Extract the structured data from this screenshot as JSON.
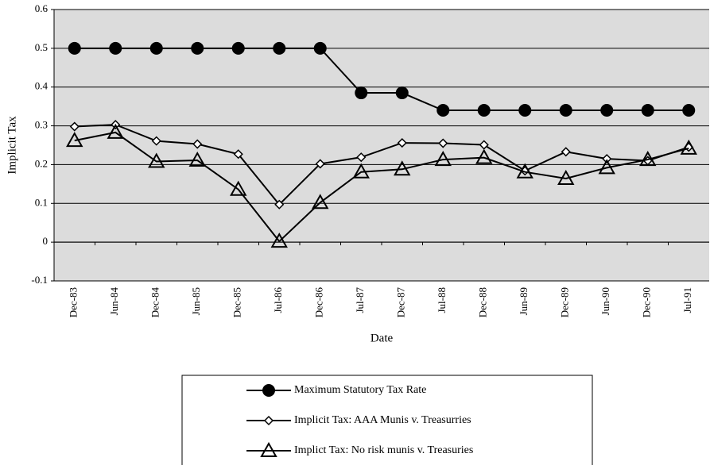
{
  "chart_data": {
    "type": "line",
    "x_label": "Date",
    "y_label": "Implicit Tax",
    "categories": [
      "Dec-83",
      "Jun-84",
      "Dec-84",
      "Jun-85",
      "Dec-85",
      "Jul-86",
      "Dec-86",
      "Jul-87",
      "Dec-87",
      "Jul-88",
      "Dec-88",
      "Jun-89",
      "Dec-89",
      "Jun-90",
      "Dec-90",
      "Jul-91"
    ],
    "series": [
      {
        "name": "Maximum Statutory Tax Rate",
        "color": "#000000",
        "marker": "circle",
        "values": [
          0.5,
          0.5,
          0.5,
          0.5,
          0.5,
          0.5,
          0.5,
          0.385,
          0.385,
          0.34,
          0.34,
          0.34,
          0.34,
          0.34,
          0.34,
          0.34
        ]
      },
      {
        "name": "Implicit Tax: AAA Munis v. Treasurries",
        "color": "#000000",
        "marker": "diamond",
        "values": [
          0.298,
          0.303,
          0.261,
          0.253,
          0.227,
          0.097,
          0.202,
          0.219,
          0.256,
          0.255,
          0.251,
          0.184,
          0.233,
          0.215,
          0.21,
          0.245
        ]
      },
      {
        "name": "Implict Tax: No risk munis v. Treasuries",
        "color": "#000000",
        "marker": "triangle",
        "values": [
          0.262,
          0.283,
          0.208,
          0.211,
          0.136,
          0.002,
          0.102,
          0.181,
          0.188,
          0.213,
          0.218,
          0.181,
          0.164,
          0.192,
          0.213,
          0.242
        ]
      }
    ],
    "ylim": [
      -0.1,
      0.6
    ],
    "yticks": [
      0.6,
      0.5,
      0.4,
      0.3,
      0.2,
      0.1,
      0,
      -0.1
    ],
    "grid": true,
    "legend": "bottom",
    "background": "#dcdcdc"
  }
}
